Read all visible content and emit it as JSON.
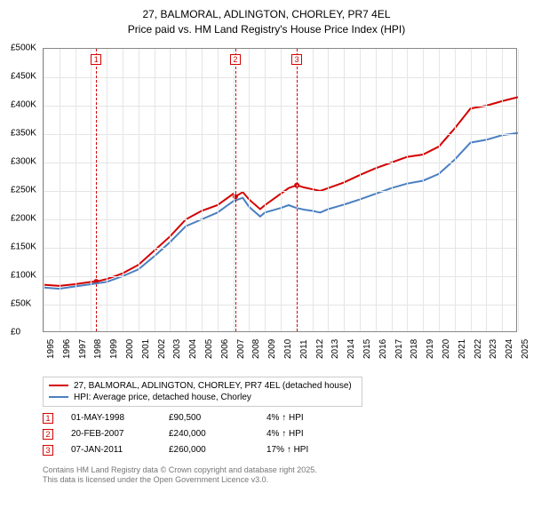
{
  "title_line1": "27, BALMORAL, ADLINGTON, CHORLEY, PR7 4EL",
  "title_line2": "Price paid vs. HM Land Registry's House Price Index (HPI)",
  "chart": {
    "type": "line",
    "xlim": [
      1995,
      2025
    ],
    "ylim": [
      0,
      500000
    ],
    "ytick_step": 50000,
    "yticks": [
      "£0",
      "£50K",
      "£100K",
      "£150K",
      "£200K",
      "£250K",
      "£300K",
      "£350K",
      "£400K",
      "£450K",
      "£500K"
    ],
    "xticks": [
      1995,
      1996,
      1997,
      1998,
      1999,
      2000,
      2001,
      2002,
      2003,
      2004,
      2005,
      2006,
      2007,
      2008,
      2009,
      2010,
      2011,
      2012,
      2013,
      2014,
      2015,
      2016,
      2017,
      2018,
      2019,
      2020,
      2021,
      2022,
      2023,
      2024,
      2025
    ],
    "grid_color": "#e5e5e5",
    "background_color": "#ffffff",
    "series": [
      {
        "name": "27, BALMORAL, ADLINGTON, CHORLEY, PR7 4EL (detached house)",
        "color": "#d40000",
        "width": 2,
        "data": [
          [
            1995,
            85000
          ],
          [
            1996,
            83000
          ],
          [
            1997,
            86000
          ],
          [
            1998,
            90000
          ],
          [
            1998.33,
            90500
          ],
          [
            1999,
            95000
          ],
          [
            2000,
            105000
          ],
          [
            2001,
            120000
          ],
          [
            2002,
            145000
          ],
          [
            2003,
            170000
          ],
          [
            2004,
            200000
          ],
          [
            2005,
            215000
          ],
          [
            2006,
            225000
          ],
          [
            2007,
            245000
          ],
          [
            2007.13,
            240000
          ],
          [
            2007.6,
            248000
          ],
          [
            2008,
            235000
          ],
          [
            2008.7,
            218000
          ],
          [
            2009,
            225000
          ],
          [
            2010,
            245000
          ],
          [
            2010.5,
            255000
          ],
          [
            2011,
            260000
          ],
          [
            2011.02,
            260000
          ],
          [
            2011.5,
            256000
          ],
          [
            2012,
            253000
          ],
          [
            2012.5,
            250000
          ],
          [
            2013,
            255000
          ],
          [
            2014,
            265000
          ],
          [
            2015,
            278000
          ],
          [
            2016,
            290000
          ],
          [
            2017,
            300000
          ],
          [
            2018,
            310000
          ],
          [
            2019,
            314000
          ],
          [
            2020,
            328000
          ],
          [
            2021,
            360000
          ],
          [
            2022,
            395000
          ],
          [
            2023,
            400000
          ],
          [
            2024,
            408000
          ],
          [
            2025,
            415000
          ]
        ]
      },
      {
        "name": "HPI: Average price, detached house, Chorley",
        "color": "#4a7fc1",
        "width": 2,
        "data": [
          [
            1995,
            80000
          ],
          [
            1996,
            78000
          ],
          [
            1997,
            82000
          ],
          [
            1998,
            86000
          ],
          [
            1999,
            90000
          ],
          [
            2000,
            100000
          ],
          [
            2001,
            112000
          ],
          [
            2002,
            135000
          ],
          [
            2003,
            160000
          ],
          [
            2004,
            188000
          ],
          [
            2005,
            200000
          ],
          [
            2006,
            212000
          ],
          [
            2007,
            232000
          ],
          [
            2007.6,
            238000
          ],
          [
            2008,
            222000
          ],
          [
            2008.7,
            205000
          ],
          [
            2009,
            212000
          ],
          [
            2010,
            220000
          ],
          [
            2010.5,
            225000
          ],
          [
            2011,
            220000
          ],
          [
            2011.5,
            217000
          ],
          [
            2012,
            215000
          ],
          [
            2012.5,
            212000
          ],
          [
            2013,
            218000
          ],
          [
            2014,
            226000
          ],
          [
            2015,
            235000
          ],
          [
            2016,
            245000
          ],
          [
            2017,
            255000
          ],
          [
            2018,
            263000
          ],
          [
            2019,
            268000
          ],
          [
            2020,
            280000
          ],
          [
            2021,
            305000
          ],
          [
            2022,
            335000
          ],
          [
            2023,
            340000
          ],
          [
            2024,
            348000
          ],
          [
            2025,
            352000
          ]
        ]
      }
    ],
    "sale_markers": [
      {
        "n": "1",
        "x": 1998.33,
        "y": 90500,
        "color": "#d40000"
      },
      {
        "n": "2",
        "x": 2007.13,
        "y": 240000,
        "color": "#d40000"
      },
      {
        "n": "3",
        "x": 2011.02,
        "y": 260000,
        "color": "#d40000"
      }
    ]
  },
  "legend": [
    {
      "color": "#d40000",
      "label": "27, BALMORAL, ADLINGTON, CHORLEY, PR7 4EL (detached house)"
    },
    {
      "color": "#4a7fc1",
      "label": "HPI: Average price, detached house, Chorley"
    }
  ],
  "events": [
    {
      "n": "1",
      "color": "#d40000",
      "date": "01-MAY-1998",
      "price": "£90,500",
      "delta": "4% ↑ HPI"
    },
    {
      "n": "2",
      "color": "#d40000",
      "date": "20-FEB-2007",
      "price": "£240,000",
      "delta": "4% ↑ HPI"
    },
    {
      "n": "3",
      "color": "#d40000",
      "date": "07-JAN-2011",
      "price": "£260,000",
      "delta": "17% ↑ HPI"
    }
  ],
  "footnote_line1": "Contains HM Land Registry data © Crown copyright and database right 2025.",
  "footnote_line2": "This data is licensed under the Open Government Licence v3.0."
}
